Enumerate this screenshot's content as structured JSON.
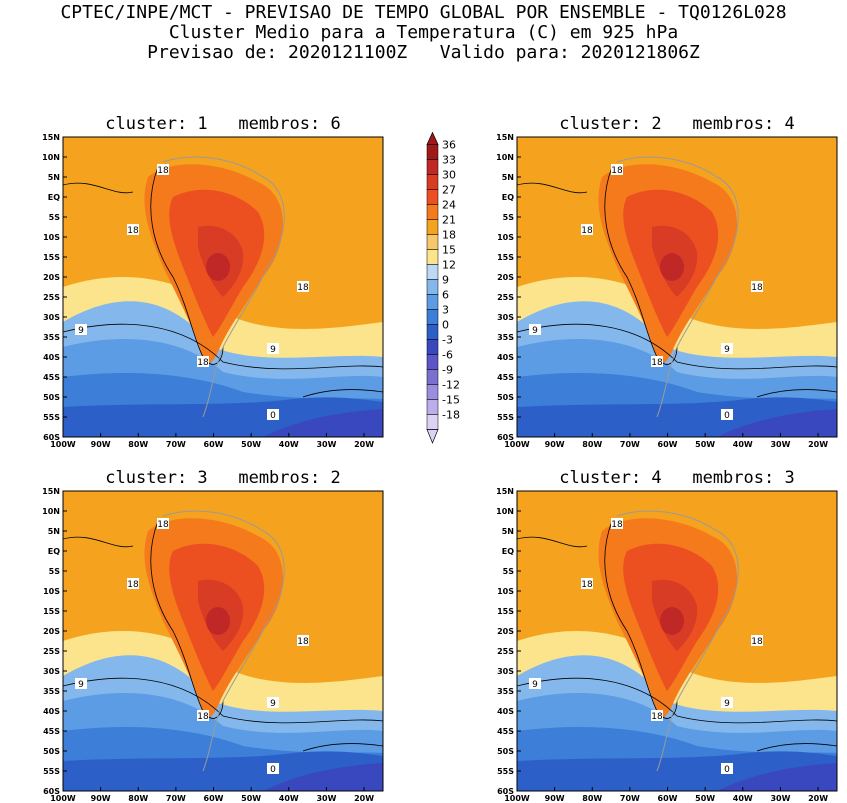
{
  "header": {
    "line1": "CPTEC/INPE/MCT - PREVISAO DE TEMPO GLOBAL POR ENSEMBLE - TQ0126L028",
    "line2": "Cluster Medio para a Temperatura (C) em 925 hPa",
    "line3": "Previsao de: 2020121100Z   Valido para: 2020121806Z"
  },
  "panels": [
    {
      "title": "cluster: 1   membros: 6",
      "contour_labels": {
        "c18a": "18",
        "c18b": "18",
        "c18c": "18",
        "c18d": "18",
        "c9a": "9",
        "c9b": "9",
        "c0": "0"
      }
    },
    {
      "title": "cluster: 2   membros: 4",
      "contour_labels": {
        "c18a": "18",
        "c18b": "18",
        "c18c": "18",
        "c18d": "18",
        "c9a": "9",
        "c9b": "9",
        "c0": "0"
      }
    },
    {
      "title": "cluster: 3   membros: 2",
      "contour_labels": {
        "c18a": "18",
        "c18b": "18",
        "c18c": "18",
        "c18d": "18",
        "c9a": "9",
        "c9b": "9",
        "c0": "0"
      }
    },
    {
      "title": "cluster: 4   membros: 3",
      "contour_labels": {
        "c18a": "18",
        "c18b": "18",
        "c18c": "18",
        "c18d": "18",
        "c9a": "9",
        "c9b": "9",
        "c0": "0"
      }
    }
  ],
  "axes": {
    "lat_ticks": [
      "15N",
      "10N",
      "5N",
      "EQ",
      "5S",
      "10S",
      "15S",
      "20S",
      "25S",
      "30S",
      "35S",
      "40S",
      "45S",
      "50S",
      "55S",
      "60S"
    ],
    "lon_ticks": [
      "100W",
      "90W",
      "80W",
      "70W",
      "60W",
      "50W",
      "40W",
      "30W",
      "20W"
    ]
  },
  "colorbar": {
    "levels": [
      "36",
      "33",
      "30",
      "27",
      "24",
      "21",
      "18",
      "15",
      "12",
      "9",
      "6",
      "3",
      "0",
      "-3",
      "-6",
      "-9",
      "-12",
      "-15",
      "-18"
    ],
    "colors": [
      "#a01818",
      "#c02828",
      "#d83c24",
      "#ec5020",
      "#f47a1c",
      "#f5a31e",
      "#f7c86a",
      "#fbe48c",
      "#bcd8f4",
      "#84b8ec",
      "#5c9ce4",
      "#3c7ed8",
      "#2c60c8",
      "#3a48c0",
      "#5c56c8",
      "#7a70d0",
      "#9a8ee0",
      "#bcaeea",
      "#ddd2f4"
    ]
  }
}
